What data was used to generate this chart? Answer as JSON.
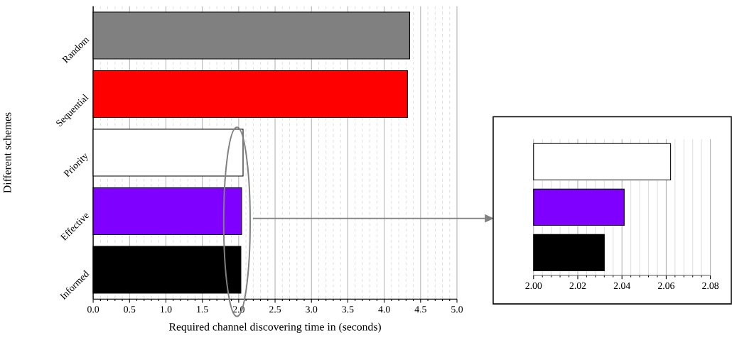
{
  "chart_data": [
    {
      "type": "bar",
      "orientation": "horizontal",
      "xlabel": "Required channel discovering time in (seconds)",
      "ylabel": "Different schemes",
      "categories": [
        "Random",
        "Sequential",
        "Priority",
        "Effective",
        "Informed"
      ],
      "values": [
        4.35,
        4.32,
        2.06,
        2.04,
        2.03
      ],
      "colors": [
        "#808080",
        "#ff0000",
        "#ffffff",
        "#8000ff",
        "#000000"
      ],
      "xlim": [
        0,
        5
      ],
      "xticks": [
        {
          "value": 0,
          "label": "0.0"
        },
        {
          "value": 0.5,
          "label": "0.5"
        },
        {
          "value": 1,
          "label": "1.0"
        },
        {
          "value": 1.5,
          "label": "1.5"
        },
        {
          "value": 2,
          "label": "2.0"
        },
        {
          "value": 2.5,
          "label": "2.5"
        },
        {
          "value": 3,
          "label": "3.0"
        },
        {
          "value": 3.5,
          "label": "3.5"
        },
        {
          "value": 4,
          "label": "4.0"
        },
        {
          "value": 4.5,
          "label": "4.5"
        },
        {
          "value": 5,
          "label": "5.0"
        }
      ],
      "grid": "x"
    },
    {
      "type": "bar",
      "orientation": "horizontal",
      "categories": [
        null,
        null,
        null
      ],
      "values": [
        2.062,
        2.041,
        2.032
      ],
      "colors": [
        "#ffffff",
        "#8000ff",
        "#000000"
      ],
      "xlim": [
        2.0,
        2.08
      ],
      "xticks": [
        {
          "value": 2.0,
          "label": "2.00"
        },
        {
          "value": 2.02,
          "label": "2.02"
        },
        {
          "value": 2.04,
          "label": "2.04"
        },
        {
          "value": 2.06,
          "label": "2.06"
        },
        {
          "value": 2.08,
          "label": "2.08"
        }
      ],
      "grid": "x",
      "tick_labels": "x"
    }
  ]
}
